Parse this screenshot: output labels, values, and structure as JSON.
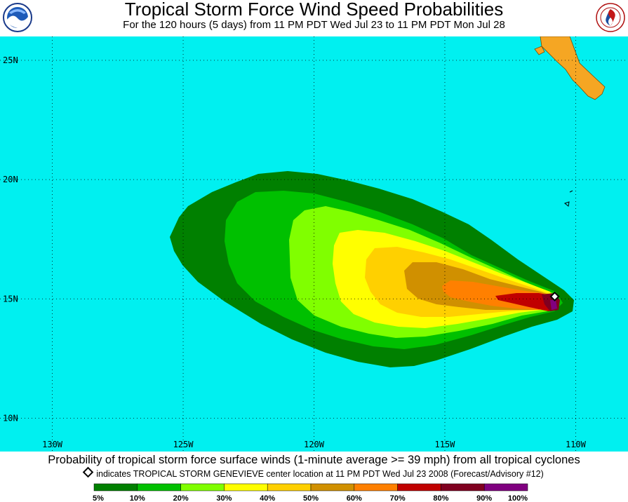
{
  "title": "Tropical Storm Force Wind Speed Probabilities",
  "subtitle": "For the 120 hours (5 days) from 11 PM PDT Wed Jul 23 to 11 PM PDT Mon Jul 28",
  "logos": {
    "left": "noaa-logo",
    "right": "national-weather-service-logo"
  },
  "colors": {
    "ocean": "#00F0F0",
    "land": "#F5A623",
    "bins": [
      "#008000",
      "#00C000",
      "#80FF00",
      "#FFFF00",
      "#FFD000",
      "#D09000",
      "#FF8000",
      "#C00000",
      "#800020",
      "#800080"
    ]
  },
  "map": {
    "lon_range": [
      -132,
      -108
    ],
    "lat_range": [
      8.6,
      26
    ],
    "lat_labels": [
      "25N",
      "20N",
      "15N",
      "10N"
    ],
    "lat_values": [
      25,
      20,
      15,
      10
    ],
    "lon_labels": [
      "130W",
      "125W",
      "120W",
      "115W",
      "110W"
    ],
    "lon_values": [
      -130,
      -125,
      -120,
      -115,
      -110
    ],
    "storm_center": {
      "lon": -110.8,
      "lat": 15.1
    }
  },
  "caption": "Probability of tropical storm force surface winds (1-minute average >= 39 mph) from all tropical cyclones",
  "advisory": "indicates TROPICAL STORM GENEVIEVE center location at 11 PM PDT Wed Jul 23 2008 (Forecast/Advisory #12)",
  "legend": {
    "labels": [
      "5%",
      "10%",
      "20%",
      "30%",
      "40%",
      "50%",
      "60%",
      "70%",
      "80%",
      "90%",
      "100%"
    ]
  }
}
